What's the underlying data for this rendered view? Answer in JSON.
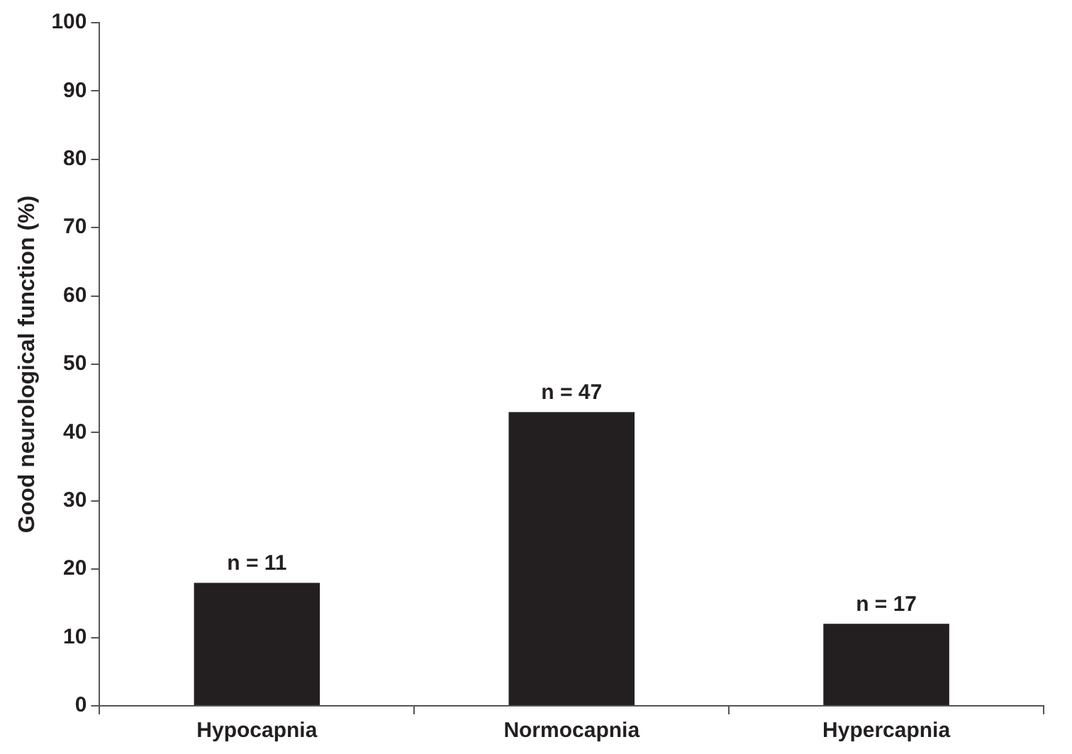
{
  "chart_data": {
    "type": "bar",
    "ylabel": "Good neurological function (%)",
    "categories": [
      "Hypocapnia",
      "Normocapnia",
      "Hypercapnia"
    ],
    "values": [
      18,
      43,
      12
    ],
    "color": "#231f20",
    "ylim": [
      0,
      100
    ],
    "yticks": [
      0,
      10,
      20,
      30,
      40,
      50,
      60,
      70,
      80,
      90,
      100
    ],
    "grid": false,
    "annotations": [
      {
        "text": "n = 11",
        "x": "Hypocapnia",
        "y": 18
      },
      {
        "text": "n = 47",
        "x": "Normocapnia",
        "y": 43
      },
      {
        "text": "n = 17",
        "x": "Hypercapnia",
        "y": 12
      }
    ]
  }
}
